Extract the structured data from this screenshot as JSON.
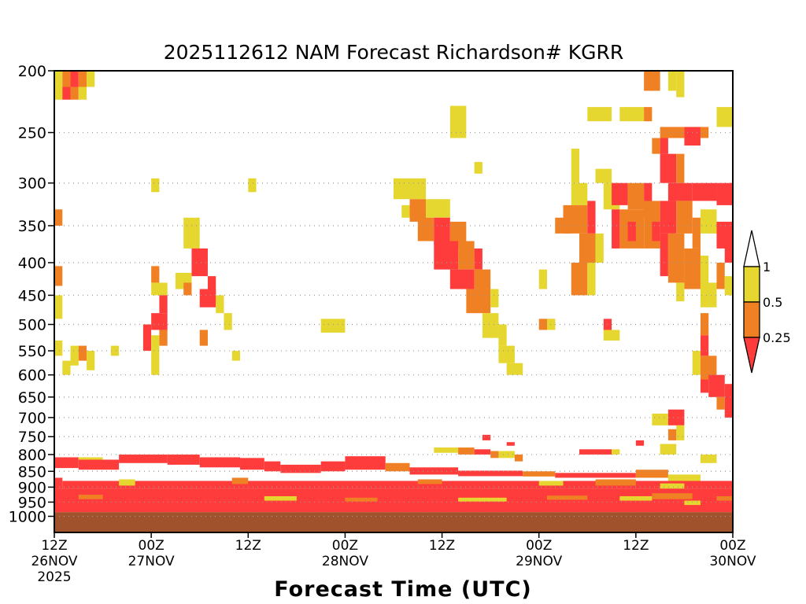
{
  "chart_data": {
    "type": "heatmap",
    "title": "2025112612 NAM Forecast Richardson# KGRR",
    "xlabel": "Forecast Time (UTC)",
    "ylabel": "",
    "x_range_hours": [
      0,
      84
    ],
    "x_tick_hours": [
      0,
      12,
      24,
      36,
      48,
      60,
      72,
      84
    ],
    "x_ticks": [
      {
        "lines": [
          "12Z",
          "26NOV",
          "2025"
        ]
      },
      {
        "lines": [
          "00Z",
          "27NOV"
        ]
      },
      {
        "lines": [
          "12Z"
        ]
      },
      {
        "lines": [
          "00Z",
          "28NOV"
        ]
      },
      {
        "lines": [
          "12Z"
        ]
      },
      {
        "lines": [
          "00Z",
          "29NOV"
        ]
      },
      {
        "lines": [
          "12Z"
        ]
      },
      {
        "lines": [
          "00Z",
          "30NOV"
        ]
      }
    ],
    "y_scale": "log-pressure",
    "y_range_hpa": [
      200,
      1060
    ],
    "y_ticks": [
      "200",
      "250",
      "300",
      "350",
      "400",
      "450",
      "500",
      "550",
      "600",
      "650",
      "700",
      "750",
      "800",
      "850",
      "900",
      "950",
      "1000"
    ],
    "grid": "dotted horizontal at every tick",
    "colorbar": {
      "labels": [
        "1",
        "0.5",
        "0.25"
      ],
      "bins": [
        {
          "range": "<0.25",
          "color": "#ff3c3c"
        },
        {
          "range": "0.25-0.5",
          "color": "#f08024"
        },
        {
          "range": "0.5-1",
          "color": "#e6d630"
        }
      ]
    },
    "cells_note": "blocks: [start_hour, end_hour, top_hpa, bottom_hpa, bin] with bin 0 = <0.25, 1 = 0.25-0.5, 2 = 0.5-1",
    "blocks": [
      [
        0,
        1,
        200,
        212,
        2
      ],
      [
        1,
        2,
        200,
        212,
        1
      ],
      [
        2,
        3,
        200,
        212,
        0
      ],
      [
        3,
        4,
        200,
        212,
        1
      ],
      [
        4,
        5,
        200,
        212,
        2
      ],
      [
        0,
        1,
        212,
        222,
        2
      ],
      [
        1,
        2,
        212,
        222,
        0
      ],
      [
        2,
        3,
        212,
        222,
        1
      ],
      [
        3,
        4,
        212,
        222,
        2
      ],
      [
        49,
        51,
        227,
        255,
        2
      ],
      [
        52,
        53,
        278,
        290,
        2
      ],
      [
        66,
        69,
        228,
        240,
        2
      ],
      [
        70,
        73,
        228,
        240,
        2
      ],
      [
        73,
        74,
        228,
        240,
        1
      ],
      [
        73,
        75,
        200,
        215,
        1
      ],
      [
        76,
        77,
        200,
        215,
        2
      ],
      [
        77,
        78,
        200,
        220,
        2
      ],
      [
        82,
        84,
        228,
        245,
        2
      ],
      [
        75,
        78,
        245,
        255,
        1
      ],
      [
        78,
        80,
        245,
        262,
        0
      ],
      [
        80,
        81,
        245,
        255,
        1
      ],
      [
        74,
        75,
        255,
        270,
        1
      ],
      [
        75,
        76,
        255,
        270,
        0
      ],
      [
        42,
        46,
        295,
        318,
        2
      ],
      [
        44,
        46,
        318,
        345,
        1
      ],
      [
        43,
        44,
        325,
        340,
        2
      ],
      [
        46,
        49,
        318,
        340,
        2
      ],
      [
        45,
        47,
        340,
        370,
        1
      ],
      [
        47,
        49,
        340,
        375,
        0
      ],
      [
        49,
        51,
        345,
        380,
        1
      ],
      [
        47,
        50,
        370,
        410,
        0
      ],
      [
        50,
        52,
        370,
        410,
        1
      ],
      [
        52,
        53,
        380,
        410,
        0
      ],
      [
        49,
        52,
        410,
        440,
        0
      ],
      [
        52,
        54,
        410,
        440,
        1
      ],
      [
        51,
        54,
        440,
        480,
        1
      ],
      [
        54,
        55,
        440,
        470,
        2
      ],
      [
        53,
        55,
        480,
        525,
        2
      ],
      [
        55,
        56,
        500,
        540,
        2
      ],
      [
        55,
        57,
        540,
        575,
        2
      ],
      [
        56,
        58,
        575,
        600,
        2
      ],
      [
        64,
        65,
        265,
        300,
        2
      ],
      [
        64,
        66,
        300,
        325,
        2
      ],
      [
        63,
        66,
        325,
        360,
        1
      ],
      [
        62,
        64,
        340,
        360,
        1
      ],
      [
        66,
        67,
        320,
        360,
        0
      ],
      [
        65,
        67,
        360,
        400,
        1
      ],
      [
        67,
        68,
        360,
        400,
        2
      ],
      [
        64,
        66,
        400,
        450,
        1
      ],
      [
        66,
        67,
        400,
        450,
        2
      ],
      [
        67,
        69,
        285,
        300,
        2
      ],
      [
        68,
        70,
        300,
        330,
        2
      ],
      [
        69,
        71,
        300,
        325,
        0
      ],
      [
        71,
        73,
        300,
        330,
        1
      ],
      [
        73,
        74,
        300,
        340,
        0
      ],
      [
        70,
        73,
        330,
        380,
        1
      ],
      [
        73,
        75,
        320,
        380,
        1
      ],
      [
        69,
        70,
        330,
        380,
        0
      ],
      [
        71,
        72,
        345,
        370,
        0
      ],
      [
        74,
        75,
        345,
        370,
        0
      ],
      [
        75,
        77,
        270,
        300,
        0
      ],
      [
        77,
        78,
        270,
        300,
        1
      ],
      [
        76,
        79,
        300,
        320,
        0
      ],
      [
        79,
        82,
        300,
        320,
        0
      ],
      [
        82,
        84,
        300,
        325,
        0
      ],
      [
        75,
        77,
        320,
        360,
        0
      ],
      [
        77,
        79,
        320,
        360,
        1
      ],
      [
        79,
        80,
        340,
        380,
        1
      ],
      [
        80,
        82,
        330,
        360,
        2
      ],
      [
        82,
        84,
        345,
        380,
        0
      ],
      [
        75,
        76,
        360,
        420,
        0
      ],
      [
        76,
        78,
        360,
        430,
        1
      ],
      [
        78,
        80,
        380,
        440,
        1
      ],
      [
        80,
        81,
        390,
        440,
        2
      ],
      [
        77,
        78,
        430,
        460,
        2
      ],
      [
        80,
        82,
        430,
        470,
        2
      ],
      [
        83,
        84,
        360,
        400,
        0
      ],
      [
        82,
        83,
        400,
        440,
        1
      ],
      [
        83,
        84,
        420,
        450,
        2
      ],
      [
        80,
        81,
        480,
        520,
        1
      ],
      [
        80,
        81,
        520,
        560,
        0
      ],
      [
        79,
        80,
        550,
        600,
        2
      ],
      [
        80,
        82,
        560,
        610,
        1
      ],
      [
        80,
        81,
        610,
        640,
        0
      ],
      [
        81,
        83,
        600,
        650,
        0
      ],
      [
        83,
        84,
        620,
        700,
        0
      ],
      [
        82,
        83,
        650,
        680,
        1
      ],
      [
        74,
        76,
        690,
        720,
        2
      ],
      [
        76,
        78,
        680,
        720,
        0
      ],
      [
        77,
        78,
        720,
        760,
        2
      ],
      [
        76,
        77,
        730,
        760,
        1
      ],
      [
        72,
        73,
        760,
        775,
        0
      ],
      [
        75,
        77,
        770,
        800,
        2
      ],
      [
        65,
        69,
        785,
        800,
        0
      ],
      [
        69,
        70,
        785,
        800,
        2
      ],
      [
        53,
        54,
        745,
        760,
        0
      ],
      [
        56,
        57,
        765,
        775,
        0
      ],
      [
        47,
        50,
        780,
        795,
        2
      ],
      [
        50,
        52,
        780,
        800,
        1
      ],
      [
        52,
        54,
        785,
        800,
        0
      ],
      [
        54,
        55,
        790,
        810,
        1
      ],
      [
        55,
        57,
        790,
        810,
        2
      ],
      [
        57,
        58,
        800,
        820,
        1
      ],
      [
        0,
        1,
        330,
        350,
        1
      ],
      [
        0,
        1,
        405,
        435,
        1
      ],
      [
        0,
        1,
        450,
        490,
        2
      ],
      [
        0,
        1,
        530,
        560,
        2
      ],
      [
        1,
        2,
        570,
        600,
        2
      ],
      [
        2,
        3,
        540,
        580,
        2
      ],
      [
        3,
        4,
        540,
        570,
        1
      ],
      [
        4,
        5,
        550,
        590,
        2
      ],
      [
        7,
        8,
        540,
        560,
        2
      ],
      [
        12,
        13,
        295,
        310,
        2
      ],
      [
        12,
        13,
        405,
        430,
        1
      ],
      [
        12,
        14,
        430,
        450,
        2
      ],
      [
        13,
        14,
        450,
        480,
        0
      ],
      [
        11,
        12,
        500,
        550,
        0
      ],
      [
        12,
        14,
        480,
        510,
        0
      ],
      [
        13,
        14,
        510,
        540,
        1
      ],
      [
        12,
        13,
        520,
        600,
        2
      ],
      [
        16,
        18,
        340,
        380,
        2
      ],
      [
        17,
        19,
        380,
        420,
        0
      ],
      [
        15,
        17,
        415,
        440,
        2
      ],
      [
        16,
        17,
        430,
        450,
        1
      ],
      [
        19,
        20,
        420,
        460,
        0
      ],
      [
        18,
        20,
        440,
        470,
        0
      ],
      [
        20,
        21,
        450,
        480,
        2
      ],
      [
        18,
        19,
        510,
        540,
        1
      ],
      [
        22,
        23,
        550,
        570,
        2
      ],
      [
        21,
        22,
        480,
        510,
        2
      ],
      [
        33,
        36,
        490,
        515,
        2
      ],
      [
        24,
        25,
        295,
        310,
        2
      ],
      [
        60,
        61,
        410,
        440,
        2
      ],
      [
        60,
        62,
        490,
        510,
        1
      ],
      [
        61,
        62,
        490,
        510,
        2
      ],
      [
        68,
        69,
        490,
        510,
        0
      ],
      [
        68,
        70,
        510,
        530,
        2
      ],
      [
        0,
        3,
        808,
        840,
        0
      ],
      [
        3,
        6,
        808,
        828,
        2
      ],
      [
        3,
        8,
        815,
        845,
        0
      ],
      [
        8,
        14,
        800,
        825,
        0
      ],
      [
        14,
        18,
        800,
        830,
        0
      ],
      [
        18,
        23,
        808,
        838,
        0
      ],
      [
        23,
        26,
        810,
        845,
        0
      ],
      [
        26,
        28,
        820,
        850,
        0
      ],
      [
        28,
        33,
        830,
        855,
        0
      ],
      [
        33,
        36,
        820,
        850,
        0
      ],
      [
        36,
        41,
        805,
        845,
        0
      ],
      [
        41,
        44,
        825,
        850,
        1
      ],
      [
        44,
        50,
        838,
        860,
        0
      ],
      [
        50,
        58,
        848,
        865,
        0
      ],
      [
        58,
        62,
        850,
        866,
        1
      ],
      [
        62,
        72,
        855,
        870,
        0
      ],
      [
        72,
        76,
        845,
        870,
        1
      ],
      [
        76,
        80,
        860,
        880,
        2
      ],
      [
        80,
        82,
        800,
        825,
        2
      ],
      [
        0,
        1,
        870,
        905,
        0
      ],
      [
        1,
        84,
        880,
        905,
        0
      ],
      [
        8,
        10,
        875,
        895,
        2
      ],
      [
        22,
        24,
        870,
        890,
        1
      ],
      [
        45,
        48,
        875,
        890,
        1
      ],
      [
        60,
        63,
        880,
        895,
        2
      ],
      [
        67,
        72,
        875,
        895,
        1
      ],
      [
        75,
        78,
        888,
        905,
        2
      ],
      [
        0,
        84,
        905,
        985,
        0
      ],
      [
        3,
        6,
        925,
        940,
        1
      ],
      [
        26,
        30,
        930,
        945,
        2
      ],
      [
        36,
        40,
        935,
        948,
        1
      ],
      [
        50,
        56,
        935,
        948,
        2
      ],
      [
        61,
        66,
        928,
        942,
        1
      ],
      [
        70,
        74,
        930,
        945,
        2
      ],
      [
        74,
        79,
        920,
        940,
        1
      ],
      [
        78,
        80,
        945,
        960,
        2
      ],
      [
        82,
        84,
        930,
        945,
        1
      ]
    ]
  }
}
